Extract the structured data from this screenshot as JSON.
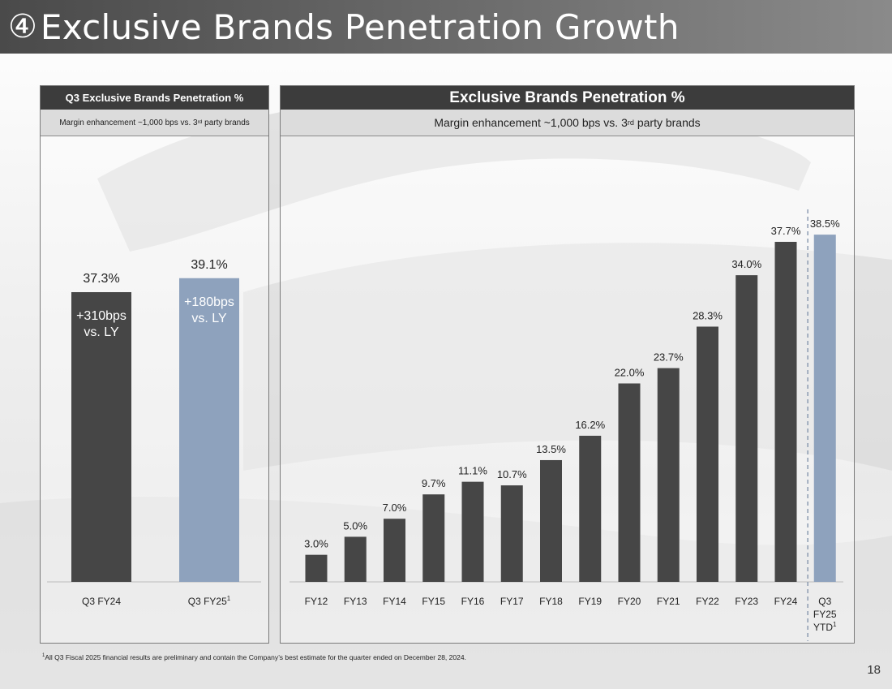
{
  "header": {
    "number_symbol": "④",
    "title": "Exclusive Brands Penetration Growth"
  },
  "left_panel": {
    "heading": "Q3 Exclusive Brands Penetration %",
    "subheading_before": "Margin enhancement ~1,000 bps vs. 3",
    "subheading_sup": "rd",
    "subheading_after": " party brands"
  },
  "right_panel": {
    "heading": "Exclusive Brands Penetration %",
    "subheading_before": "Margin enhancement ~1,000 bps vs. 3",
    "subheading_sup": "rd",
    "subheading_after": " party brands"
  },
  "chart_data": [
    {
      "type": "bar",
      "title": "Q3 Exclusive Brands Penetration %",
      "categories": [
        "Q3 FY24",
        "Q3 FY25"
      ],
      "category_superscripts": [
        "",
        "1"
      ],
      "values": [
        37.3,
        39.1
      ],
      "value_labels": [
        "37.3%",
        "39.1%"
      ],
      "bar_annotations": [
        [
          "+310bps",
          "vs. LY"
        ],
        [
          "+180bps",
          "vs. LY"
        ]
      ],
      "colors": [
        "#464646",
        "#8ea2bd"
      ],
      "ylim": [
        0,
        45
      ]
    },
    {
      "type": "bar",
      "title": "Exclusive Brands Penetration %",
      "categories": [
        "FY12",
        "FY13",
        "FY14",
        "FY15",
        "FY16",
        "FY17",
        "FY18",
        "FY19",
        "FY20",
        "FY21",
        "FY22",
        "FY23",
        "FY24",
        "Q3 FY25 YTD"
      ],
      "category_lines": [
        [
          "FY12"
        ],
        [
          "FY13"
        ],
        [
          "FY14"
        ],
        [
          "FY15"
        ],
        [
          "FY16"
        ],
        [
          "FY17"
        ],
        [
          "FY18"
        ],
        [
          "FY19"
        ],
        [
          "FY20"
        ],
        [
          "FY21"
        ],
        [
          "FY22"
        ],
        [
          "FY23"
        ],
        [
          "FY24"
        ],
        [
          "Q3",
          "FY25",
          "YTD"
        ]
      ],
      "category_superscripts": [
        "",
        "",
        "",
        "",
        "",
        "",
        "",
        "",
        "",
        "",
        "",
        "",
        "",
        "1"
      ],
      "values": [
        3.0,
        5.0,
        7.0,
        9.7,
        11.1,
        10.7,
        13.5,
        16.2,
        22.0,
        23.7,
        28.3,
        34.0,
        37.7,
        38.5
      ],
      "value_labels": [
        "3.0%",
        "5.0%",
        "7.0%",
        "9.7%",
        "11.1%",
        "10.7%",
        "13.5%",
        "16.2%",
        "22.0%",
        "23.7%",
        "28.3%",
        "34.0%",
        "37.7%",
        "38.5%"
      ],
      "colors": {
        "default": "#464646",
        "highlight": "#8ea2bd"
      },
      "ylim": [
        0,
        45
      ]
    }
  ],
  "footnote": {
    "sup": "1",
    "text": "All Q3 Fiscal 2025 financial results are preliminary and contain the Company’s best estimate for the quarter ended on December 28, 2024."
  },
  "page_number": "18"
}
